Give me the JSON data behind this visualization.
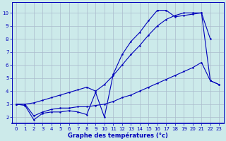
{
  "title": "Graphe des températures (°c)",
  "background_color": "#cceaea",
  "grid_color": "#aabbcc",
  "line_color": "#0000bb",
  "xlim": [
    -0.5,
    23.5
  ],
  "ylim": [
    1.5,
    10.8
  ],
  "yticks": [
    2,
    3,
    4,
    5,
    6,
    7,
    8,
    9,
    10
  ],
  "xticks": [
    0,
    1,
    2,
    3,
    4,
    5,
    6,
    7,
    8,
    9,
    10,
    11,
    12,
    13,
    14,
    15,
    16,
    17,
    18,
    19,
    20,
    21,
    22,
    23
  ],
  "line1_x": [
    0,
    1,
    2,
    3,
    4,
    5,
    6,
    7,
    8,
    9,
    10,
    11,
    12,
    13,
    14,
    15,
    16,
    17,
    18,
    19,
    20,
    21,
    22
  ],
  "line1_y": [
    3.0,
    2.9,
    1.8,
    2.3,
    2.4,
    2.4,
    2.5,
    2.4,
    2.2,
    3.9,
    2.0,
    5.3,
    6.8,
    7.8,
    8.5,
    9.4,
    10.2,
    10.2,
    9.7,
    9.8,
    9.9,
    10.0,
    8.0
  ],
  "line2_x": [
    0,
    1,
    2,
    3,
    4,
    5,
    6,
    7,
    8,
    9,
    10,
    11,
    12,
    13,
    14,
    15,
    16,
    17,
    18,
    19,
    20,
    21,
    22,
    23
  ],
  "line2_y": [
    3.0,
    3.0,
    3.1,
    3.3,
    3.5,
    3.7,
    3.9,
    4.1,
    4.3,
    4.0,
    4.5,
    5.2,
    6.0,
    6.8,
    7.5,
    8.3,
    9.0,
    9.5,
    9.8,
    10.0,
    10.0,
    10.0,
    4.8,
    4.5
  ],
  "line3_x": [
    0,
    1,
    2,
    3,
    4,
    5,
    6,
    7,
    8,
    9,
    10,
    11,
    12,
    13,
    14,
    15,
    16,
    17,
    18,
    19,
    20,
    21,
    22,
    23
  ],
  "line3_y": [
    3.0,
    3.0,
    2.1,
    2.4,
    2.6,
    2.7,
    2.7,
    2.8,
    2.8,
    2.9,
    3.0,
    3.2,
    3.5,
    3.7,
    4.0,
    4.3,
    4.6,
    4.9,
    5.2,
    5.5,
    5.8,
    6.2,
    4.8,
    4.5
  ]
}
